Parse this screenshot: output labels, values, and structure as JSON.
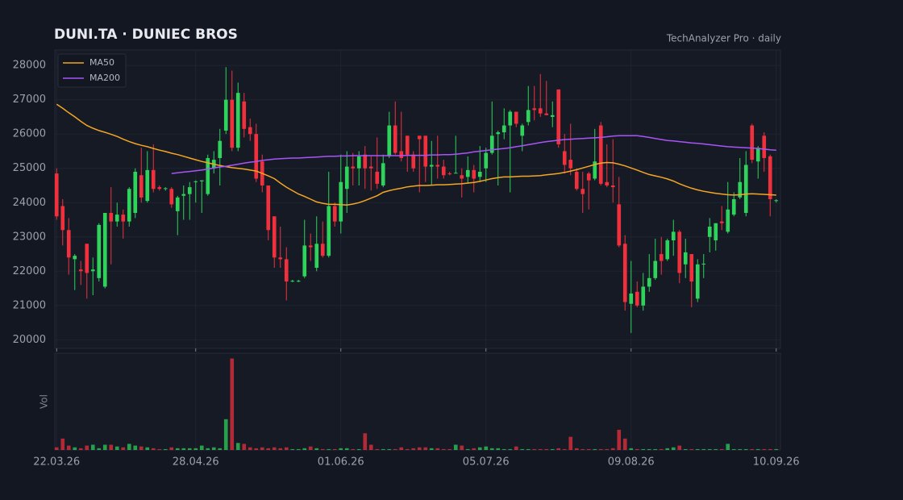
{
  "chart_data": {
    "type": "candlestick",
    "title": "DUNI.TA  ·  DUNIEC BROS",
    "subtitle": "TechAnalyzer Pro · daily",
    "volume_label": "Vol",
    "up_color": "#2fd25a",
    "down_color": "#f0313d",
    "grid": true,
    "legend": "top-left",
    "xlim": [
      -0.3,
      119.7
    ],
    "xticks": [
      {
        "value": 0,
        "label": "22.03.26"
      },
      {
        "value": 23,
        "label": "28.04.26"
      },
      {
        "value": 47,
        "label": "01.06.26"
      },
      {
        "value": 71,
        "label": "05.07.26"
      },
      {
        "value": 95,
        "label": "09.08.26"
      },
      {
        "value": 119,
        "label": "10.09.26"
      }
    ],
    "ylim": [
      19750,
      28450
    ],
    "yticks": [
      20000,
      21000,
      22000,
      23000,
      24000,
      25000,
      26000,
      27000,
      28000
    ],
    "vlim": [
      0,
      110
    ],
    "open": [
      24850,
      23900,
      23200,
      22350,
      22050,
      22800,
      22000,
      21800,
      21550,
      23700,
      23450,
      23650,
      23450,
      23700,
      24800,
      24050,
      24950,
      24450,
      24400,
      24400,
      23750,
      24200,
      24250,
      24600,
      24620,
      24250,
      25000,
      25300,
      26100,
      27000,
      25600,
      26950,
      26200,
      26000,
      25200,
      24500,
      23600,
      22400,
      22350,
      21700,
      21700,
      21850,
      22750,
      22100,
      22800,
      22450,
      23900,
      23450,
      24400,
      25050,
      25000,
      25400,
      25050,
      24900,
      24500,
      25350,
      26250,
      25500,
      25950,
      25400,
      25950,
      25950,
      25050,
      25100,
      25050,
      24850,
      24850,
      24800,
      24750,
      24950,
      24750,
      25000,
      25450,
      26000,
      26050,
      26250,
      26650,
      25950,
      26350,
      26750,
      26750,
      26600,
      26500,
      27300,
      25500,
      25250,
      24900,
      24400,
      24850,
      24700,
      26250,
      24600,
      24500,
      23950,
      22800,
      21050,
      21400,
      21000,
      21550,
      21800,
      22500,
      22350,
      22900,
      23150,
      22200,
      22500,
      21200,
      22200,
      23000,
      22900,
      23450,
      23150,
      23650,
      24150,
      23700,
      26250,
      25200,
      25950,
      25350,
      24050
    ],
    "high": [
      25000,
      24100,
      23550,
      22500,
      22300,
      22800,
      22400,
      23400,
      23700,
      24450,
      24000,
      23800,
      24450,
      25000,
      25600,
      25500,
      25700,
      24500,
      24450,
      24450,
      24200,
      24500,
      24600,
      24650,
      24650,
      25400,
      25500,
      26150,
      27950,
      27850,
      27500,
      27200,
      26450,
      26300,
      25400,
      24500,
      23600,
      23300,
      22700,
      21750,
      21750,
      23500,
      23100,
      23600,
      23450,
      24900,
      24000,
      25400,
      25500,
      25450,
      25500,
      25650,
      25350,
      25900,
      25400,
      26650,
      26950,
      26650,
      25950,
      25500,
      25950,
      25950,
      25800,
      25950,
      25250,
      24900,
      25950,
      25000,
      25350,
      25100,
      25650,
      25600,
      26950,
      26100,
      26750,
      26700,
      26650,
      26300,
      27400,
      27400,
      27750,
      27550,
      26950,
      27300,
      26000,
      26300,
      25000,
      24900,
      24900,
      26150,
      26350,
      25700,
      25850,
      24750,
      23050,
      22300,
      21700,
      21950,
      22500,
      22950,
      23000,
      22950,
      23500,
      23200,
      22950,
      22500,
      22350,
      22500,
      23550,
      23400,
      23900,
      24600,
      24300,
      25300,
      25500,
      26300,
      25650,
      26050,
      25400,
      24100
    ],
    "low": [
      23500,
      22750,
      21900,
      21450,
      21600,
      21200,
      21300,
      21700,
      21500,
      22200,
      23300,
      22950,
      23300,
      23550,
      24000,
      24000,
      24300,
      24350,
      24350,
      23850,
      23050,
      23500,
      23500,
      24000,
      23700,
      24200,
      24850,
      24500,
      26000,
      25500,
      25500,
      25900,
      25800,
      24600,
      24300,
      22900,
      22100,
      22100,
      21150,
      21680,
      21680,
      21800,
      22300,
      22000,
      22400,
      22400,
      23300,
      23100,
      23700,
      24500,
      24500,
      24400,
      24350,
      24400,
      24450,
      25300,
      25400,
      25200,
      24900,
      24900,
      24300,
      24600,
      24500,
      24700,
      24700,
      24800,
      24850,
      24150,
      24550,
      24300,
      24600,
      24600,
      25400,
      24500,
      25850,
      24300,
      26200,
      25500,
      26250,
      26400,
      26500,
      26550,
      26200,
      25600,
      24850,
      24800,
      24350,
      23700,
      23800,
      24650,
      24500,
      24450,
      24000,
      22700,
      20850,
      20200,
      20950,
      20850,
      21400,
      21750,
      21900,
      22300,
      22450,
      21650,
      21800,
      20950,
      21100,
      21800,
      22550,
      22600,
      23200,
      23100,
      23600,
      24100,
      23600,
      25150,
      24700,
      24900,
      23600,
      24000
    ],
    "close": [
      23600,
      23200,
      22400,
      22450,
      22000,
      21950,
      22050,
      23350,
      23700,
      23450,
      23650,
      23450,
      24400,
      24900,
      24150,
      24950,
      24400,
      24400,
      24420,
      23950,
      24150,
      24250,
      24450,
      24620,
      24650,
      25300,
      25250,
      25800,
      27000,
      25600,
      27200,
      26150,
      26000,
      24700,
      24500,
      23200,
      22400,
      22350,
      21700,
      21720,
      21720,
      22750,
      22700,
      22800,
      22450,
      23900,
      23450,
      24600,
      25050,
      25000,
      25350,
      25000,
      25000,
      24550,
      25150,
      26250,
      25450,
      25300,
      25400,
      25000,
      25850,
      25050,
      25100,
      25050,
      24800,
      24830,
      24870,
      24700,
      24950,
      24700,
      24900,
      25450,
      25950,
      26050,
      26250,
      26650,
      26300,
      26250,
      26700,
      26700,
      26600,
      26550,
      26550,
      25700,
      25100,
      25000,
      24400,
      24250,
      24650,
      25200,
      24550,
      24500,
      24450,
      22750,
      21100,
      21350,
      21000,
      21550,
      21800,
      22300,
      22300,
      22900,
      23150,
      21950,
      22550,
      21700,
      22200,
      22220,
      23300,
      23400,
      23400,
      23800,
      24100,
      24600,
      25100,
      25250,
      25600,
      25300,
      24100,
      24070
    ],
    "volume": [
      3,
      13,
      5,
      3,
      2,
      5,
      6,
      2,
      6,
      6,
      4,
      3,
      7,
      5,
      4,
      3,
      2,
      1,
      1,
      3,
      2,
      2,
      2,
      2,
      5,
      2,
      3,
      2,
      35,
      104,
      8,
      7,
      3,
      2,
      3,
      2,
      3,
      2,
      3,
      1,
      1,
      2,
      4,
      2,
      1,
      1,
      1,
      2,
      2,
      1,
      1,
      19,
      6,
      1,
      1,
      1,
      1,
      3,
      1,
      2,
      3,
      3,
      2,
      2,
      1,
      1,
      6,
      5,
      1,
      2,
      3,
      4,
      2,
      2,
      1,
      1,
      4,
      1,
      1,
      1,
      1,
      1,
      1,
      2,
      1,
      15,
      2,
      1,
      1,
      1,
      1,
      1,
      2,
      23,
      13,
      2,
      1,
      1,
      1,
      1,
      1,
      2,
      3,
      5,
      1,
      1,
      1,
      1,
      1,
      1,
      1,
      7,
      1,
      1,
      1,
      1,
      1,
      1,
      1,
      1
    ],
    "series": [
      {
        "name": "MA50",
        "color": "#f5a623",
        "values": [
          26870,
          26750,
          26620,
          26500,
          26370,
          26250,
          26170,
          26100,
          26050,
          25990,
          25930,
          25850,
          25780,
          25720,
          25670,
          25630,
          25580,
          25530,
          25490,
          25440,
          25400,
          25350,
          25300,
          25250,
          25200,
          25160,
          25120,
          25080,
          25050,
          25020,
          25000,
          24980,
          24950,
          24920,
          24850,
          24780,
          24700,
          24570,
          24450,
          24350,
          24250,
          24180,
          24100,
          24020,
          23980,
          23950,
          23950,
          23940,
          23930,
          23960,
          24000,
          24060,
          24130,
          24200,
          24300,
          24350,
          24390,
          24420,
          24460,
          24480,
          24500,
          24500,
          24510,
          24520,
          24520,
          24530,
          24540,
          24550,
          24570,
          24590,
          24620,
          24660,
          24700,
          24730,
          24750,
          24750,
          24760,
          24770,
          24770,
          24780,
          24790,
          24810,
          24830,
          24850,
          24880,
          24920,
          24960,
          25010,
          25060,
          25110,
          25150,
          25170,
          25160,
          25120,
          25070,
          25010,
          24950,
          24880,
          24820,
          24780,
          24740,
          24690,
          24630,
          24550,
          24480,
          24420,
          24370,
          24330,
          24300,
          24270,
          24250,
          24230,
          24220,
          24230,
          24250,
          24260,
          24250,
          24240,
          24230,
          24220
        ]
      },
      {
        "name": "MA200",
        "color": "#a855f7",
        "values": [
          null,
          null,
          null,
          null,
          null,
          null,
          null,
          null,
          null,
          null,
          null,
          null,
          null,
          null,
          null,
          null,
          null,
          null,
          null,
          24850,
          24870,
          24890,
          24910,
          24930,
          24950,
          24980,
          25010,
          25040,
          25060,
          25090,
          25120,
          25150,
          25180,
          25200,
          25230,
          25250,
          25270,
          25280,
          25290,
          25300,
          25300,
          25310,
          25320,
          25330,
          25340,
          25350,
          25350,
          25360,
          25360,
          25370,
          25370,
          25370,
          25370,
          25370,
          25370,
          25370,
          25370,
          25370,
          25380,
          25380,
          25380,
          25380,
          25390,
          25390,
          25400,
          25400,
          25410,
          25430,
          25450,
          25480,
          25500,
          25520,
          25540,
          25560,
          25580,
          25600,
          25630,
          25660,
          25690,
          25720,
          25750,
          25780,
          25800,
          25820,
          25840,
          25850,
          25860,
          25870,
          25880,
          25890,
          25900,
          25920,
          25940,
          25950,
          25950,
          25950,
          25950,
          25930,
          25900,
          25870,
          25840,
          25810,
          25800,
          25780,
          25760,
          25740,
          25730,
          25710,
          25690,
          25670,
          25650,
          25630,
          25620,
          25610,
          25600,
          25590,
          25580,
          25560,
          25540,
          25530
        ]
      }
    ]
  }
}
